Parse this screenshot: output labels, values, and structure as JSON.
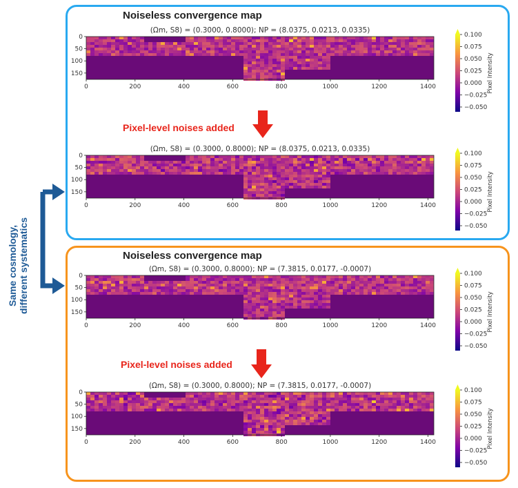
{
  "groups": [
    {
      "title": "Noiseless convergence map",
      "noise_label": "Pixel-level noises added",
      "frame_color": "#29a9f0"
    },
    {
      "title": "Noiseless convergence map",
      "noise_label": "Pixel-level noises added",
      "frame_color": "#f7941d"
    }
  ],
  "side_label": {
    "line1": "Same cosmology,",
    "line2": "different systematics",
    "color": "#1e5a96"
  },
  "arrow_color": "#e8251b",
  "chart_data": [
    {
      "type": "heatmap",
      "title": "(Ωm, S8) = (0.3000, 0.8000); NP = (8.0375, 0.0213, 0.0335)",
      "xticks": [
        0,
        200,
        400,
        600,
        800,
        1000,
        1200,
        1400
      ],
      "yticks": [
        0,
        50,
        100,
        150
      ],
      "xlim": [
        0,
        1424
      ],
      "ylim": [
        176,
        0
      ],
      "colorbar": {
        "label": "Pixel Intensity",
        "ticks": [
          "0.100",
          "0.075",
          "0.050",
          "0.025",
          "0.000",
          "−0.025",
          "−0.050"
        ],
        "range": [
          -0.06,
          0.1
        ],
        "colormap": "plasma",
        "extend": "max"
      }
    },
    {
      "type": "heatmap",
      "title": "(Ωm, S8) = (0.3000, 0.8000); NP = (8.0375, 0.0213, 0.0335)",
      "xticks": [
        0,
        200,
        400,
        600,
        800,
        1000,
        1200,
        1400
      ],
      "yticks": [
        0,
        50,
        100,
        150
      ],
      "xlim": [
        0,
        1424
      ],
      "ylim": [
        176,
        0
      ],
      "colorbar": {
        "label": "Pixel Intensity",
        "ticks": [
          "0.100",
          "0.075",
          "0.050",
          "0.025",
          "0.000",
          "−0.025",
          "−0.050"
        ],
        "range": [
          -0.06,
          0.1
        ],
        "colormap": "plasma",
        "extend": "max"
      }
    },
    {
      "type": "heatmap",
      "title": "(Ωm, S8) = (0.3000, 0.8000); NP = (7.3815, 0.0177, -0.0007)",
      "xticks": [
        0,
        200,
        400,
        600,
        800,
        1000,
        1200,
        1400
      ],
      "yticks": [
        0,
        50,
        100,
        150
      ],
      "xlim": [
        0,
        1424
      ],
      "ylim": [
        176,
        0
      ],
      "colorbar": {
        "label": "Pixel Intensity",
        "ticks": [
          "0.100",
          "0.075",
          "0.050",
          "0.025",
          "0.000",
          "−0.025",
          "−0.050"
        ],
        "range": [
          -0.06,
          0.1
        ],
        "colormap": "plasma",
        "extend": "max"
      }
    },
    {
      "type": "heatmap",
      "title": "(Ωm, S8) = (0.3000, 0.8000); NP = (7.3815, 0.0177, -0.0007)",
      "xticks": [
        0,
        200,
        400,
        600,
        800,
        1000,
        1200,
        1400
      ],
      "yticks": [
        0,
        50,
        100,
        150
      ],
      "xlim": [
        0,
        1424
      ],
      "ylim": [
        176,
        0
      ],
      "colorbar": {
        "label": "Pixel Intensity",
        "ticks": [
          "0.100",
          "0.075",
          "0.050",
          "0.025",
          "0.000",
          "−0.025",
          "−0.050"
        ],
        "range": [
          -0.06,
          0.1
        ],
        "colormap": "plasma",
        "extend": "max"
      }
    }
  ]
}
